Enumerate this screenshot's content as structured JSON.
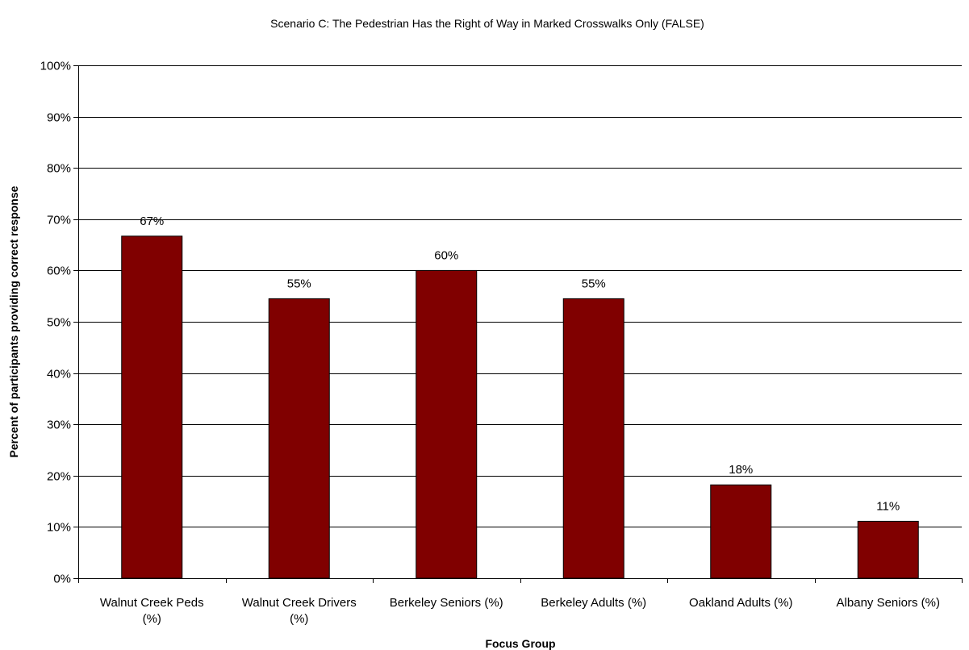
{
  "chart_data": {
    "type": "bar",
    "title": "Scenario C: The Pedestrian Has the Right of Way in Marked Crosswalks Only (FALSE)",
    "xlabel": "Focus Group",
    "ylabel": "Percent of participants providing correct response",
    "categories": [
      [
        "Walnut Creek Peds",
        "(%)"
      ],
      [
        "Walnut Creek Drivers",
        "(%)"
      ],
      [
        "Berkeley Seniors (%)"
      ],
      [
        "Berkeley Adults (%)"
      ],
      [
        "Oakland Adults (%)"
      ],
      [
        "Albany Seniors (%)"
      ]
    ],
    "values": [
      0.667,
      0.545,
      0.6,
      0.545,
      0.182,
      0.111
    ],
    "data_labels": [
      "67%",
      "55%",
      "60%",
      "55%",
      "18%",
      "11%"
    ],
    "ylim": [
      0,
      1
    ],
    "yticks": [
      0,
      0.1,
      0.2,
      0.3,
      0.4,
      0.5,
      0.6,
      0.7,
      0.8,
      0.9,
      1.0
    ],
    "ytick_labels": [
      "0%",
      "10%",
      "20%",
      "30%",
      "40%",
      "50%",
      "60%",
      "70%",
      "80%",
      "90%",
      "100%"
    ],
    "grid": true,
    "legend": "none",
    "bar_color": "#800000"
  }
}
